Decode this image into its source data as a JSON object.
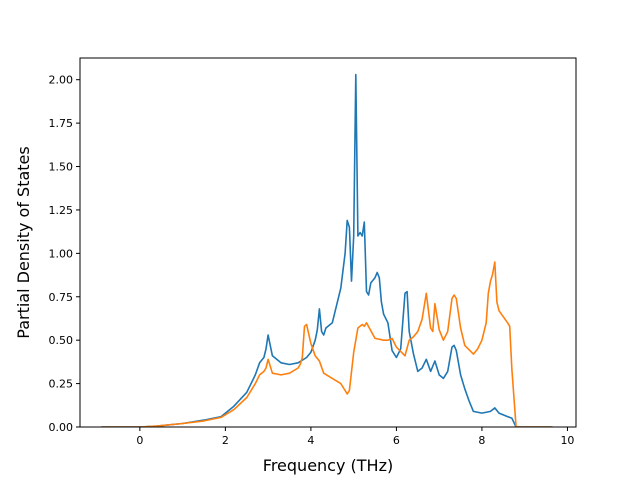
{
  "chart_data": {
    "type": "line",
    "title": "",
    "xlabel": "Frequency (THz)",
    "ylabel": "Partial Density of States",
    "xlim": [
      -1.4,
      10.2
    ],
    "ylim": [
      0,
      2.125
    ],
    "xticks": [
      0,
      2,
      4,
      6,
      8,
      10
    ],
    "xtick_labels": [
      "0",
      "2",
      "4",
      "6",
      "8",
      "10"
    ],
    "yticks": [
      0,
      0.25,
      0.5,
      0.75,
      1.0,
      1.25,
      1.5,
      1.75,
      2.0
    ],
    "ytick_labels": [
      "0.00",
      "0.25",
      "0.50",
      "0.75",
      "1.00",
      "1.25",
      "1.50",
      "1.75",
      "2.00"
    ],
    "grid": false,
    "legend": false,
    "series": [
      {
        "color": "#1f77b4",
        "x": [
          -0.9,
          0.0,
          0.4,
          1.0,
          1.5,
          1.9,
          2.2,
          2.5,
          2.7,
          2.8,
          2.9,
          2.95,
          3.0,
          3.1,
          3.3,
          3.5,
          3.7,
          3.9,
          4.0,
          4.1,
          4.15,
          4.2,
          4.25,
          4.3,
          4.35,
          4.5,
          4.7,
          4.8,
          4.85,
          4.9,
          4.95,
          5.0,
          5.05,
          5.1,
          5.15,
          5.2,
          5.25,
          5.3,
          5.35,
          5.4,
          5.5,
          5.55,
          5.6,
          5.65,
          5.7,
          5.8,
          5.85,
          5.9,
          6.0,
          6.1,
          6.2,
          6.25,
          6.3,
          6.4,
          6.5,
          6.6,
          6.7,
          6.8,
          6.9,
          7.0,
          7.1,
          7.2,
          7.3,
          7.35,
          7.4,
          7.5,
          7.6,
          7.7,
          7.8,
          8.0,
          8.2,
          8.3,
          8.4,
          8.6,
          8.7,
          8.8,
          9.0,
          9.65
        ],
        "y": [
          0.0,
          0.0,
          0.005,
          0.02,
          0.04,
          0.06,
          0.12,
          0.2,
          0.3,
          0.37,
          0.4,
          0.45,
          0.53,
          0.41,
          0.37,
          0.36,
          0.37,
          0.4,
          0.43,
          0.5,
          0.56,
          0.68,
          0.55,
          0.53,
          0.57,
          0.6,
          0.8,
          1.0,
          1.19,
          1.15,
          0.84,
          1.1,
          2.03,
          1.1,
          1.12,
          1.1,
          1.18,
          0.78,
          0.76,
          0.83,
          0.86,
          0.89,
          0.86,
          0.72,
          0.65,
          0.6,
          0.52,
          0.44,
          0.4,
          0.45,
          0.77,
          0.78,
          0.55,
          0.42,
          0.32,
          0.34,
          0.39,
          0.32,
          0.38,
          0.3,
          0.28,
          0.32,
          0.46,
          0.47,
          0.44,
          0.3,
          0.22,
          0.15,
          0.09,
          0.08,
          0.09,
          0.11,
          0.08,
          0.06,
          0.05,
          0.0,
          0.0,
          0.0
        ]
      },
      {
        "color": "#ff7f0e",
        "x": [
          -0.9,
          0.0,
          0.4,
          1.0,
          1.5,
          1.9,
          2.2,
          2.5,
          2.7,
          2.8,
          2.9,
          2.95,
          3.0,
          3.1,
          3.3,
          3.5,
          3.7,
          3.75,
          3.8,
          3.85,
          3.9,
          4.0,
          4.1,
          4.2,
          4.3,
          4.5,
          4.7,
          4.8,
          4.85,
          4.9,
          5.0,
          5.1,
          5.2,
          5.25,
          5.3,
          5.5,
          5.7,
          5.8,
          5.9,
          6.0,
          6.2,
          6.3,
          6.4,
          6.5,
          6.6,
          6.7,
          6.8,
          6.85,
          6.9,
          7.0,
          7.1,
          7.2,
          7.3,
          7.35,
          7.4,
          7.5,
          7.6,
          7.8,
          7.9,
          8.0,
          8.1,
          8.15,
          8.2,
          8.25,
          8.3,
          8.35,
          8.4,
          8.6,
          8.65,
          8.7,
          8.8,
          9.0,
          9.65
        ],
        "y": [
          0.0,
          0.0,
          0.005,
          0.02,
          0.035,
          0.055,
          0.1,
          0.17,
          0.25,
          0.3,
          0.32,
          0.34,
          0.39,
          0.31,
          0.3,
          0.31,
          0.34,
          0.36,
          0.4,
          0.58,
          0.59,
          0.48,
          0.41,
          0.38,
          0.31,
          0.28,
          0.25,
          0.21,
          0.19,
          0.21,
          0.43,
          0.57,
          0.59,
          0.58,
          0.6,
          0.51,
          0.5,
          0.5,
          0.51,
          0.46,
          0.41,
          0.5,
          0.52,
          0.55,
          0.62,
          0.77,
          0.57,
          0.55,
          0.71,
          0.56,
          0.5,
          0.55,
          0.74,
          0.76,
          0.74,
          0.57,
          0.47,
          0.42,
          0.45,
          0.5,
          0.6,
          0.77,
          0.84,
          0.88,
          0.95,
          0.72,
          0.67,
          0.6,
          0.58,
          0.33,
          0.0,
          0.0,
          0.0
        ]
      }
    ]
  }
}
